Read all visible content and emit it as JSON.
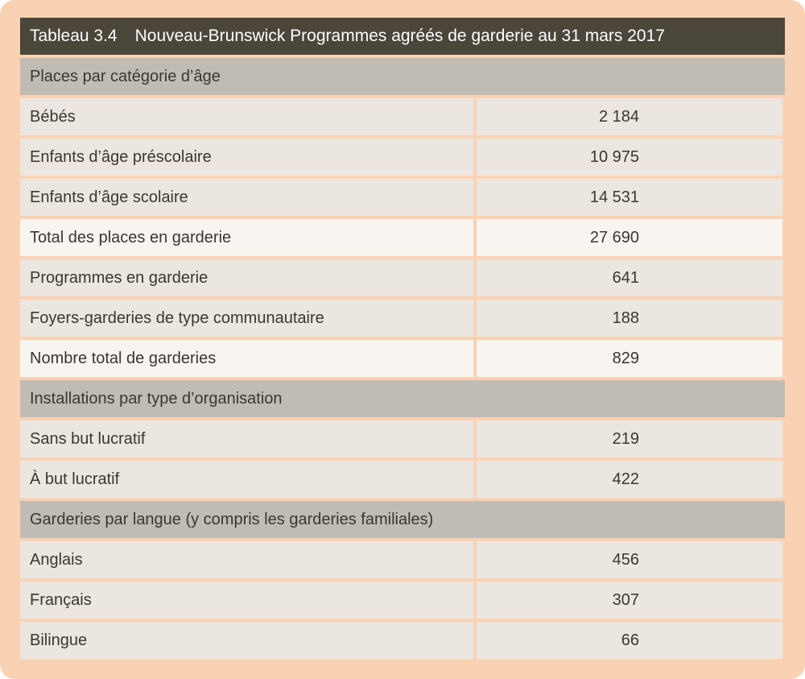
{
  "title": {
    "number": "Tableau 3.4",
    "text": "Nouveau-Brunswick Programmes agréés de garderie au 31 mars 2017"
  },
  "sections": {
    "places": {
      "heading": "Places par catégorie d’âge",
      "rows": [
        {
          "label": "Bébés",
          "value": "2 184"
        },
        {
          "label": "Enfants d’âge préscolaire",
          "value": "10 975"
        },
        {
          "label": "Enfants d’âge scolaire",
          "value": "14 531"
        },
        {
          "label": "Total des places en garderie",
          "value": "27 690"
        },
        {
          "label": "Programmes en garderie",
          "value": "641"
        },
        {
          "label": "Foyers-garderies de type communautaire",
          "value": "188"
        },
        {
          "label": "Nombre total de garderies",
          "value": "829"
        }
      ]
    },
    "installations": {
      "heading": "Installations par type d’organisation",
      "rows": [
        {
          "label": "Sans but lucratif",
          "value": "219"
        },
        {
          "label": "À but lucratif",
          "value": "422"
        }
      ]
    },
    "langue": {
      "heading": "Garderies par langue (y compris les garderies familiales)",
      "rows": [
        {
          "label": "Anglais",
          "value": "456"
        },
        {
          "label": "Français",
          "value": "307"
        },
        {
          "label": "Bilingue",
          "value": "66"
        }
      ]
    }
  },
  "colors": {
    "frame": "#f9d2b4",
    "title_bar": "#4b463a",
    "section_header": "#c1bcb3",
    "row": "#ece6e0",
    "total_row": "#f8f5f1",
    "text": "#3a3630"
  }
}
